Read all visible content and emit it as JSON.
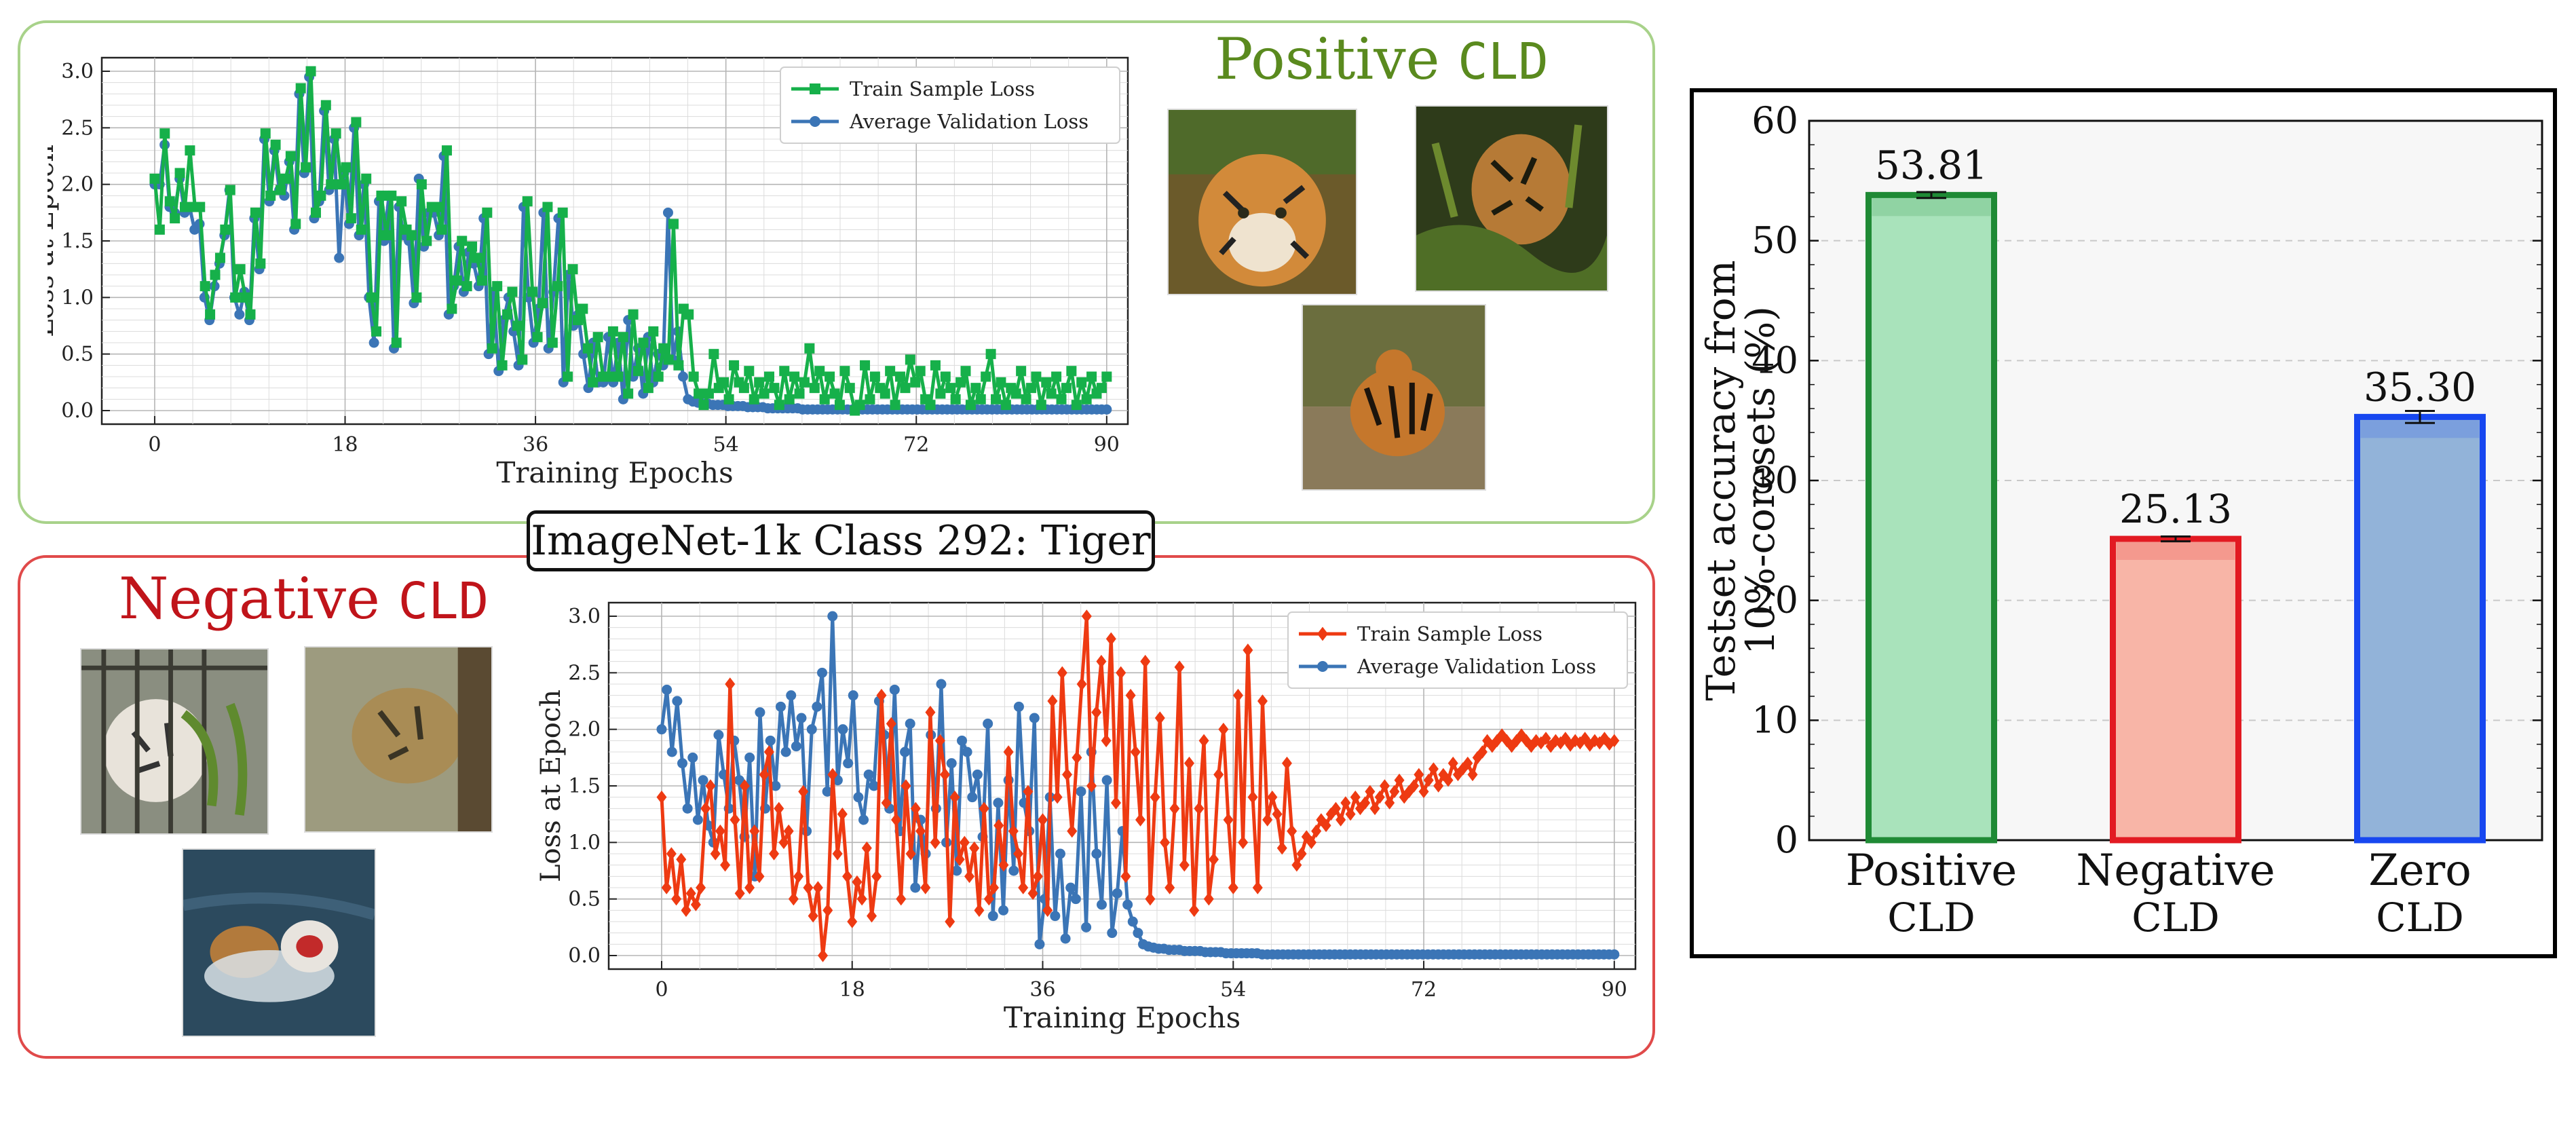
{
  "center_label": "ImageNet-1k Class 292: Tiger",
  "positive_panel": {
    "tag_word": "Positive",
    "tag_mono": "CLD"
  },
  "negative_panel": {
    "tag_word": "Negative",
    "tag_mono": "CLD"
  },
  "chart_data": [
    {
      "id": "positive-loss",
      "type": "line",
      "xlabel": "Training Epochs",
      "ylabel": "Loss at Epoch",
      "xlim": [
        -5,
        92
      ],
      "ylim": [
        -0.12,
        3.12
      ],
      "xticks": [
        0,
        18,
        36,
        54,
        72,
        90
      ],
      "yticks": [
        0.0,
        0.5,
        1.0,
        1.5,
        2.0,
        2.5,
        3.0
      ],
      "ytick_labels": [
        "0.0",
        "0.5",
        "1.0",
        "1.5",
        "2.0",
        "2.5",
        "3.0"
      ],
      "legend_position": "top-right",
      "series": [
        {
          "name": "Train Sample Loss",
          "color": "#16b04a",
          "marker": "square",
          "values": [
            2.05,
            1.6,
            2.45,
            1.85,
            1.7,
            2.1,
            1.8,
            2.3,
            1.8,
            1.8,
            1.1,
            0.85,
            1.2,
            1.35,
            1.6,
            1.95,
            1.0,
            1.25,
            1.0,
            0.85,
            1.75,
            1.3,
            2.45,
            1.9,
            2.35,
            1.95,
            2.05,
            2.25,
            1.65,
            2.85,
            2.15,
            3.0,
            1.75,
            1.9,
            2.7,
            2.0,
            2.45,
            2.0,
            2.15,
            1.7,
            2.55,
            1.6,
            2.05,
            1.0,
            0.7,
            1.9,
            1.55,
            1.9,
            0.6,
            1.85,
            1.6,
            1.55,
            1.0,
            2.0,
            1.5,
            1.8,
            1.8,
            1.6,
            2.3,
            0.9,
            1.15,
            1.5,
            1.1,
            1.45,
            1.35,
            1.15,
            1.75,
            0.55,
            1.1,
            0.4,
            0.85,
            1.05,
            0.75,
            0.45,
            1.85,
            1.05,
            0.65,
            0.95,
            1.8,
            0.6,
            1.1,
            1.75,
            0.3,
            1.25,
            0.8,
            0.9,
            0.55,
            0.25,
            0.65,
            0.3,
            0.3,
            0.7,
            0.3,
            0.65,
            0.15,
            0.85,
            0.35,
            0.6,
            0.2,
            0.7,
            0.3,
            0.55,
            0.45,
            1.65,
            0.4,
            0.9,
            0.85,
            0.3,
            0.15,
            0.05,
            0.15,
            0.5,
            0.2,
            0.25,
            0.1,
            0.4,
            0.25,
            0.2,
            0.35,
            0.1,
            0.25,
            0.15,
            0.3,
            0.2,
            0.05,
            0.35,
            0.1,
            0.3,
            0.15,
            0.25,
            0.55,
            0.2,
            0.35,
            0.1,
            0.3,
            0.15,
            0.05,
            0.35,
            0.2,
            0.0,
            0.05,
            0.4,
            0.1,
            0.3,
            0.2,
            0.15,
            0.35,
            0.05,
            0.3,
            0.2,
            0.45,
            0.25,
            0.35,
            0.1,
            0.05,
            0.4,
            0.15,
            0.3,
            0.2,
            0.1,
            0.25,
            0.35,
            0.05,
            0.2,
            0.1,
            0.3,
            0.5,
            0.1,
            0.25,
            0.05,
            0.2,
            0.15,
            0.35,
            0.1,
            0.2,
            0.3,
            0.05,
            0.25,
            0.15,
            0.3,
            0.1,
            0.2,
            0.35,
            0.05,
            0.25,
            0.1,
            0.3,
            0.15,
            0.2,
            0.3
          ]
        },
        {
          "name": "Average Validation Loss",
          "color": "#3b75b6",
          "marker": "circle",
          "values": [
            2.0,
            2.0,
            2.35,
            1.8,
            1.75,
            2.05,
            1.75,
            1.8,
            1.6,
            1.65,
            1.0,
            0.8,
            1.1,
            1.3,
            1.55,
            1.95,
            1.0,
            0.85,
            1.05,
            0.8,
            1.7,
            1.25,
            2.4,
            1.85,
            2.3,
            1.95,
            1.9,
            2.2,
            1.6,
            2.8,
            2.1,
            2.95,
            1.7,
            1.85,
            2.65,
            1.95,
            2.4,
            1.35,
            2.1,
            1.65,
            2.5,
            1.55,
            2.0,
            1.0,
            0.6,
            1.85,
            1.5,
            1.9,
            0.55,
            1.8,
            1.55,
            1.5,
            0.95,
            2.05,
            1.45,
            1.75,
            1.75,
            1.55,
            2.25,
            0.85,
            1.1,
            1.45,
            1.05,
            1.4,
            1.3,
            1.1,
            1.7,
            0.5,
            1.05,
            0.35,
            0.8,
            1.0,
            0.7,
            0.4,
            1.8,
            1.0,
            0.6,
            0.9,
            1.75,
            0.55,
            1.05,
            1.7,
            0.25,
            1.2,
            0.75,
            0.85,
            0.5,
            0.2,
            0.6,
            0.25,
            0.25,
            0.65,
            0.25,
            0.6,
            0.1,
            0.8,
            0.3,
            0.55,
            0.15,
            0.65,
            0.25,
            0.5,
            0.4,
            1.75,
            0.45,
            0.7,
            0.3,
            0.1,
            0.08,
            0.07,
            0.06,
            0.06,
            0.05,
            0.05,
            0.05,
            0.04,
            0.04,
            0.04,
            0.04,
            0.03,
            0.03,
            0.03,
            0.03,
            0.02,
            0.02,
            0.02,
            0.02,
            0.02,
            0.02,
            0.02,
            0.01,
            0.01,
            0.01,
            0.01,
            0.01,
            0.01,
            0.01,
            0.01,
            0.01,
            0.01,
            0.01,
            0.01,
            0.01,
            0.01,
            0.01,
            0.01,
            0.01,
            0.01,
            0.01,
            0.01,
            0.01,
            0.01,
            0.01,
            0.01,
            0.01,
            0.01,
            0.01,
            0.01,
            0.01,
            0.01,
            0.01,
            0.01,
            0.01,
            0.01,
            0.01,
            0.01,
            0.01,
            0.01,
            0.01,
            0.01,
            0.01,
            0.01,
            0.01,
            0.01,
            0.01,
            0.01,
            0.01,
            0.01,
            0.01,
            0.01,
            0.01,
            0.01,
            0.01,
            0.01,
            0.01,
            0.01,
            0.01,
            0.01,
            0.01,
            0.01,
            0.01,
            0.01
          ]
        }
      ]
    },
    {
      "id": "negative-loss",
      "type": "line",
      "xlabel": "Training Epochs",
      "ylabel": "Loss at Epoch",
      "xlim": [
        -5,
        92
      ],
      "ylim": [
        -0.12,
        3.12
      ],
      "xticks": [
        0,
        18,
        36,
        54,
        72,
        90
      ],
      "yticks": [
        0.0,
        0.5,
        1.0,
        1.5,
        2.0,
        2.5,
        3.0
      ],
      "ytick_labels": [
        "0.0",
        "0.5",
        "1.0",
        "1.5",
        "2.0",
        "2.5",
        "3.0"
      ],
      "legend_position": "top-right",
      "series": [
        {
          "name": "Train Sample Loss",
          "color": "#ee3a12",
          "marker": "diamond",
          "values": [
            1.4,
            0.6,
            0.9,
            0.5,
            0.85,
            0.4,
            0.55,
            0.45,
            0.6,
            1.3,
            1.5,
            0.9,
            1.1,
            0.8,
            2.4,
            1.2,
            0.55,
            1.5,
            0.6,
            1.1,
            0.7,
            1.6,
            1.8,
            0.9,
            1.3,
            1.0,
            1.1,
            0.5,
            0.7,
            1.45,
            0.6,
            0.35,
            0.6,
            0.0,
            0.4,
            1.6,
            0.9,
            1.25,
            0.7,
            0.3,
            0.65,
            0.5,
            0.95,
            0.35,
            0.7,
            2.3,
            1.35,
            2.05,
            1.2,
            0.5,
            1.5,
            0.9,
            1.3,
            1.1,
            0.6,
            2.15,
            1.0,
            1.9,
            1.6,
            0.3,
            1.4,
            0.85,
            1.0,
            0.7,
            0.95,
            0.4,
            1.3,
            0.5,
            0.6,
            1.15,
            0.8,
            1.8,
            1.1,
            0.9,
            0.6,
            1.45,
            0.55,
            0.7,
            1.2,
            0.4,
            2.25,
            1.4,
            2.5,
            1.6,
            1.1,
            1.75,
            2.4,
            3.0,
            1.5,
            2.15,
            2.6,
            1.9,
            2.8,
            1.35,
            2.5,
            0.7,
            2.3,
            1.8,
            1.2,
            2.6,
            0.5,
            1.4,
            2.1,
            1.0,
            0.6,
            1.3,
            2.55,
            0.8,
            1.7,
            0.4,
            1.3,
            1.9,
            0.5,
            0.85,
            1.6,
            2.0,
            1.2,
            0.6,
            2.3,
            1.0,
            2.7,
            1.4,
            0.6,
            2.25,
            1.2,
            1.4,
            1.25,
            0.95,
            1.7,
            1.1,
            0.8,
            0.9,
            1.05,
            1.0,
            1.1,
            1.2,
            1.15,
            1.25,
            1.3,
            1.2,
            1.35,
            1.25,
            1.4,
            1.3,
            1.35,
            1.45,
            1.3,
            1.4,
            1.5,
            1.35,
            1.45,
            1.55,
            1.4,
            1.45,
            1.5,
            1.6,
            1.45,
            1.55,
            1.65,
            1.5,
            1.6,
            1.55,
            1.7,
            1.6,
            1.65,
            1.7,
            1.6,
            1.75,
            1.8,
            1.9,
            1.85,
            1.9,
            1.95,
            1.9,
            1.85,
            1.9,
            1.95,
            1.9,
            1.85,
            1.9,
            1.88,
            1.92,
            1.85,
            1.9,
            1.88,
            1.92,
            1.86,
            1.9,
            1.88,
            1.92,
            1.86,
            1.9,
            1.88,
            1.92,
            1.87,
            1.9
          ]
        },
        {
          "name": "Average Validation Loss",
          "color": "#3b75b6",
          "marker": "circle",
          "values": [
            2.0,
            2.35,
            1.8,
            2.25,
            1.7,
            1.3,
            1.75,
            1.2,
            1.55,
            1.15,
            1.0,
            1.95,
            1.6,
            1.3,
            1.9,
            1.55,
            1.05,
            1.75,
            0.7,
            2.15,
            1.3,
            1.9,
            1.5,
            2.2,
            1.8,
            2.3,
            1.85,
            2.1,
            1.1,
            2.0,
            2.2,
            2.5,
            1.45,
            3.0,
            1.55,
            2.0,
            1.7,
            2.3,
            1.4,
            1.2,
            1.6,
            1.5,
            2.25,
            1.95,
            1.3,
            2.35,
            1.1,
            1.8,
            2.05,
            0.6,
            1.2,
            0.9,
            1.95,
            1.3,
            2.4,
            1.0,
            1.7,
            0.75,
            1.9,
            1.8,
            1.4,
            1.6,
            1.05,
            2.05,
            0.35,
            1.35,
            0.4,
            1.55,
            0.75,
            2.2,
            1.35,
            1.1,
            2.1,
            0.1,
            0.5,
            1.4,
            0.35,
            0.9,
            0.15,
            0.6,
            0.5,
            1.45,
            0.25,
            1.8,
            0.9,
            0.45,
            1.55,
            0.2,
            0.55,
            1.1,
            0.45,
            0.3,
            0.2,
            0.1,
            0.08,
            0.07,
            0.06,
            0.06,
            0.05,
            0.05,
            0.05,
            0.04,
            0.04,
            0.04,
            0.04,
            0.03,
            0.03,
            0.03,
            0.03,
            0.02,
            0.02,
            0.02,
            0.02,
            0.02,
            0.02,
            0.02,
            0.01,
            0.01,
            0.01,
            0.01,
            0.01,
            0.01,
            0.01,
            0.01,
            0.01,
            0.01,
            0.01,
            0.01,
            0.01,
            0.01,
            0.01,
            0.01,
            0.01,
            0.01,
            0.01,
            0.01,
            0.01,
            0.01,
            0.01,
            0.01,
            0.01,
            0.01,
            0.01,
            0.01,
            0.01,
            0.01,
            0.01,
            0.01,
            0.01,
            0.01,
            0.01,
            0.01,
            0.01,
            0.01,
            0.01,
            0.01,
            0.01,
            0.01,
            0.01,
            0.01,
            0.01,
            0.01,
            0.01,
            0.01,
            0.01,
            0.01,
            0.01,
            0.01,
            0.01,
            0.01,
            0.01,
            0.01,
            0.01,
            0.01,
            0.01,
            0.01,
            0.01,
            0.01,
            0.01,
            0.01,
            0.01,
            0.01,
            0.01,
            0.01,
            0.01
          ]
        }
      ]
    },
    {
      "id": "testset-accuracy",
      "type": "bar",
      "ylabel": "Testset accuracy from 10%-coresets (%)",
      "ylim": [
        0,
        60
      ],
      "yticks": [
        0,
        10,
        20,
        30,
        40,
        50,
        60
      ],
      "grid": "horizontal-dashed",
      "categories": [
        {
          "line1": "Positive",
          "line2": "CLD"
        },
        {
          "line1": "Negative",
          "line2": "CLD"
        },
        {
          "line1": "Zero",
          "line2": "CLD"
        }
      ],
      "values": [
        53.81,
        25.13,
        35.3
      ],
      "value_labels": [
        "53.81",
        "25.13",
        "35.30"
      ],
      "errors": [
        0.25,
        0.2,
        0.5
      ],
      "fill_colors": [
        "#a9e3bb",
        "#f8b5a7",
        "#92b3d9"
      ],
      "edge_colors": [
        "#1f8a35",
        "#e21a22",
        "#1747f0"
      ]
    }
  ]
}
